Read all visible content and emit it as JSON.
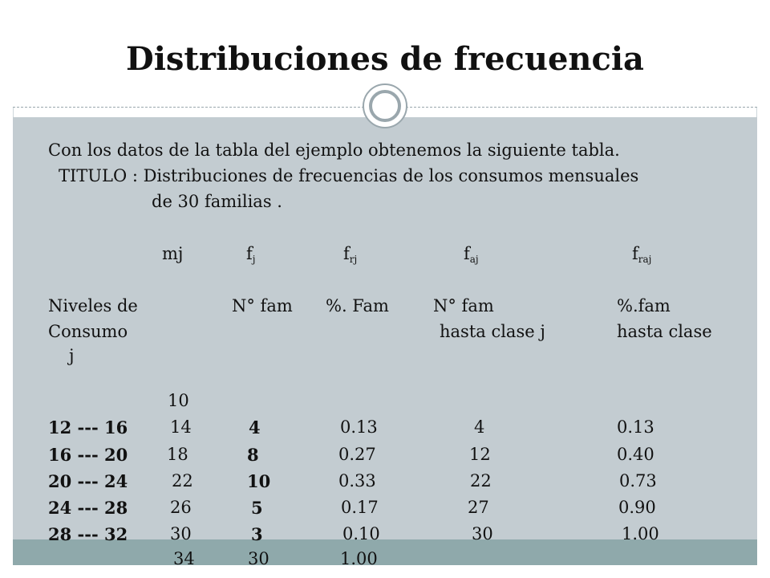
{
  "slide": {
    "title": "Distribuciones de frecuencia",
    "intro": "Con los datos de la tabla  del ejemplo  obtenemos la siguiente tabla.",
    "titulo_line1": "TITULO :  Distribuciones de frecuencias de los consumos mensuales",
    "titulo_line2": "de 30  familias ."
  },
  "columns": {
    "mj": "mj",
    "fj": {
      "base": "f",
      "sub": "j"
    },
    "frj": {
      "base": "f",
      "sub": "rj"
    },
    "faj": {
      "base": "f",
      "sub": "aj"
    },
    "fraj": {
      "base": "f",
      "sub": "raj"
    }
  },
  "headers": {
    "niveles": "Niveles de",
    "consumo": "Consumo",
    "nfam": "N° fam",
    "pctfam": "%. Fam",
    "nfam2": "N° fam",
    "hasta_clase_j": "hasta clase j",
    "pctfam2": "%.fam",
    "hasta_clase": "hasta clase",
    "j": "j"
  },
  "first_mark": "10",
  "rows": [
    {
      "interval": "12 --- 16",
      "mark": "14",
      "f": "4",
      "fr": "0.13",
      "fa": "4",
      "fra": "0.13"
    },
    {
      "interval": "16 --- 20",
      "mark": "18",
      "f": "8",
      "fr": "0.27",
      "fa": "12",
      "fra": "0.40"
    },
    {
      "interval": "20 --- 24",
      "mark": "22",
      "f": "10",
      "fr": "0.33",
      "fa": "22",
      "fra": "0.73"
    },
    {
      "interval": "24 --- 28",
      "mark": "26",
      "f": "5",
      "fr": "0.17",
      "fa": "27",
      "fra": "0.90"
    },
    {
      "interval": "28 --- 32",
      "mark": "30",
      "f": "3",
      "fr": "0.10",
      "fa": "30",
      "fra": "1.00"
    }
  ],
  "totals": {
    "mark": "34",
    "f": "30",
    "fr": "1.00"
  }
}
